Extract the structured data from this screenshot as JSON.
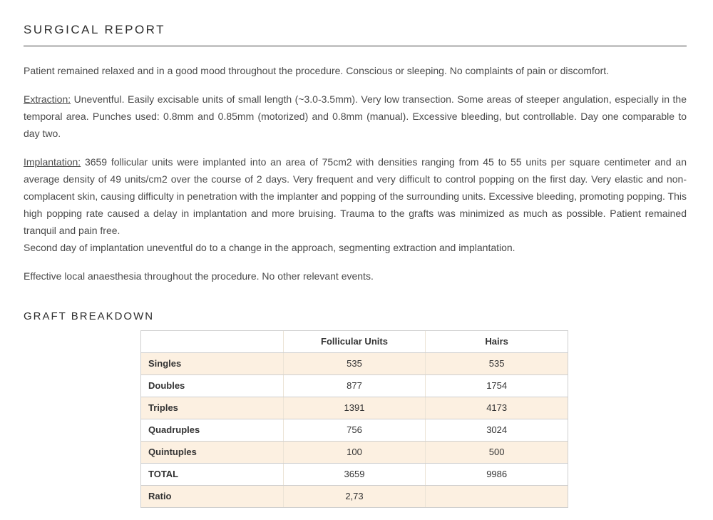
{
  "report": {
    "title": "SURGICAL REPORT",
    "paragraphs": {
      "intro": "Patient remained relaxed and in a good mood throughout the procedure. Conscious or sleeping. No complaints of pain or discomfort.",
      "extraction_label": "Extraction:",
      "extraction_body": "Uneventful. Easily excisable units of small length (~3.0-3.5mm). Very low transection. Some areas of steeper angulation, especially in the temporal area. Punches used: 0.8mm and 0.85mm (motorized) and 0.8mm (manual). Excessive bleeding, but controllable. Day one comparable to day two.",
      "implantation_label": "Implantation:",
      "implantation_body": "3659 follicular units were implanted into an area of 75cm2 with densities ranging from 45 to 55 units per square centimeter and an average density of 49 units/cm2 over the course of 2 days. Very frequent and very difficult to control popping on the first day. Very elastic and non-complacent skin, causing difficulty in penetration with the implanter and popping of the surrounding units. Excessive bleeding, promoting popping. This high popping rate caused a delay in implantation and more bruising. Trauma to the grafts was minimized as much as possible. Patient remained tranquil and pain free.",
      "implantation_line2": "Second day of implantation uneventful do to a change in the approach, segmenting extraction and implantation.",
      "anaesthesia": "Effective local anaesthesia throughout the procedure. No other relevant events."
    },
    "graft_heading": "GRAFT BREAKDOWN",
    "table": {
      "headers": {
        "label": "",
        "follicular_units": "Follicular Units",
        "hairs": "Hairs"
      },
      "rows": [
        {
          "label": "Singles",
          "follicular_units": "535",
          "hairs": "535"
        },
        {
          "label": "Doubles",
          "follicular_units": "877",
          "hairs": "1754"
        },
        {
          "label": "Triples",
          "follicular_units": "1391",
          "hairs": "4173"
        },
        {
          "label": "Quadruples",
          "follicular_units": "756",
          "hairs": "3024"
        },
        {
          "label": "Quintuples",
          "follicular_units": "100",
          "hairs": "500"
        },
        {
          "label": "TOTAL",
          "follicular_units": "3659",
          "hairs": "9986"
        },
        {
          "label": "Ratio",
          "follicular_units": "2,73",
          "hairs": ""
        }
      ]
    },
    "colors": {
      "highlight_row": "#fcf0e1",
      "table_border": "#cfcfcf",
      "body_text": "#4a4a4a",
      "heading_text": "#2e2e2e"
    }
  }
}
